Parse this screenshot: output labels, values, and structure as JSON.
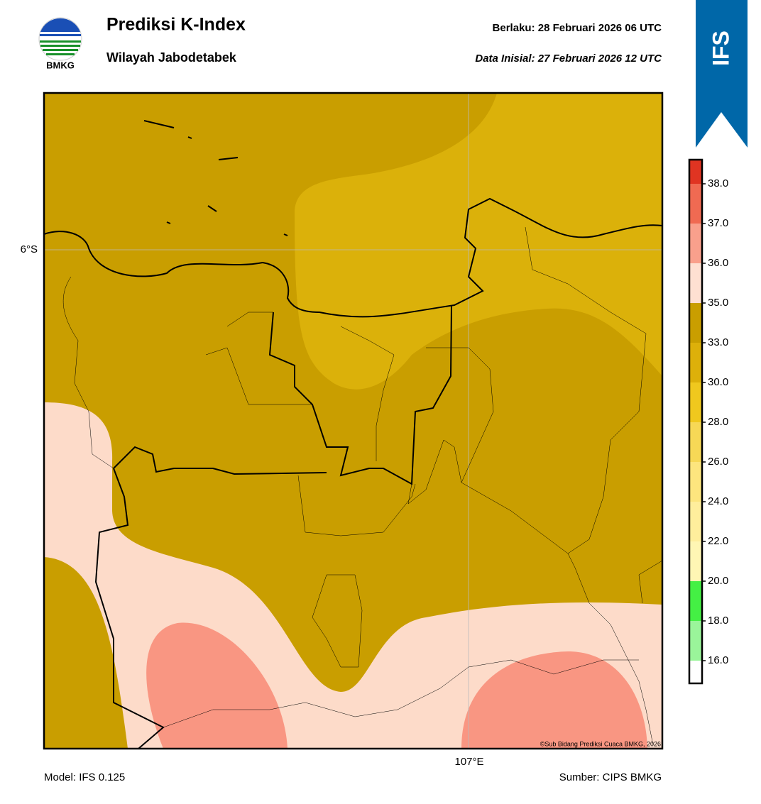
{
  "header": {
    "title": "Prediksi K-Index",
    "subtitle": "Wilayah Jabodetabek",
    "valid": "Berlaku:  28 Februari 2026 06 UTC",
    "initial": "Data Inisial:  27 Februari 2026 12 UTC",
    "logo": "BMKG",
    "badge": "IFS"
  },
  "map": {
    "lat_label": "6°S",
    "lon_label": "107°E",
    "credit": "©Sub Bidang Prediksi Cuaca BMKG, 2026"
  },
  "colorbar": {
    "ticks": [
      {
        "value": 16,
        "label": "16.0"
      },
      {
        "value": 18,
        "label": "18.0"
      },
      {
        "value": 20,
        "label": "20.0"
      },
      {
        "value": 22,
        "label": "22.0"
      },
      {
        "value": 24,
        "label": "24.0"
      },
      {
        "value": 26,
        "label": "26.0"
      },
      {
        "value": 28,
        "label": "28.0"
      },
      {
        "value": 30,
        "label": "30.0"
      },
      {
        "value": 33,
        "label": "33.0"
      },
      {
        "value": 35,
        "label": "35.0"
      },
      {
        "value": 36,
        "label": "36.0"
      },
      {
        "value": 37,
        "label": "37.0"
      },
      {
        "value": 38,
        "label": "38.0"
      }
    ],
    "colors": [
      "#ffffff",
      "#9af59a",
      "#44f044",
      "#fff6b4",
      "#ffee9c",
      "#fde57e",
      "#f7d856",
      "#f0c81e",
      "#ddb00a",
      "#c99e00",
      "#fee0d2",
      "#f9a08c",
      "#f06a52",
      "#e03422"
    ]
  },
  "footer": {
    "model": "Model: IFS 0.125",
    "source": "Sumber: CIPS BMKG"
  }
}
